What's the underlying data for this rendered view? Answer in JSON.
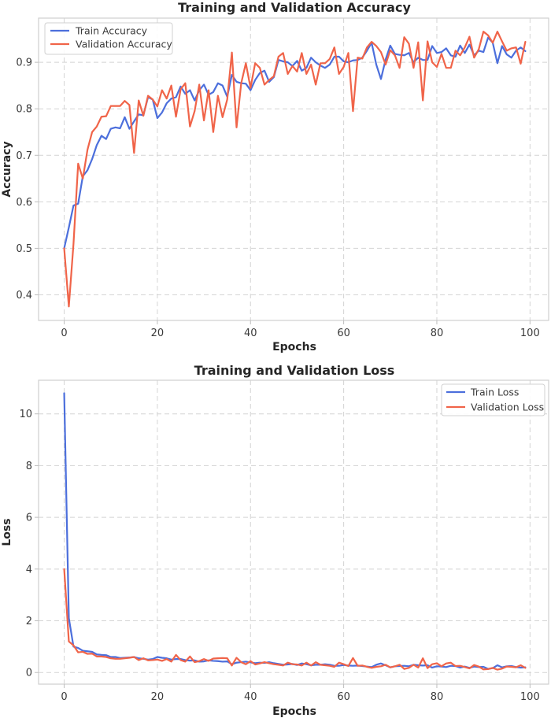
{
  "chart_data": [
    {
      "type": "line",
      "title": "Training and Validation Accuracy",
      "xlabel": "Epochs",
      "ylabel": "Accuracy",
      "xlim": [
        -5.5,
        104
      ],
      "ylim": [
        0.345,
        0.995
      ],
      "xticks": [
        0,
        20,
        40,
        60,
        80,
        100
      ],
      "yticks": [
        0.4,
        0.5,
        0.6,
        0.7,
        0.8,
        0.9
      ],
      "grid": true,
      "legend_position": "top-left",
      "series": [
        {
          "name": "Train Accuracy",
          "color": "#4c6fdc",
          "values": [
            0.5,
            0.545,
            0.592,
            0.596,
            0.655,
            0.668,
            0.692,
            0.722,
            0.742,
            0.735,
            0.757,
            0.76,
            0.758,
            0.782,
            0.757,
            0.773,
            0.788,
            0.786,
            0.825,
            0.82,
            0.78,
            0.792,
            0.812,
            0.822,
            0.825,
            0.848,
            0.832,
            0.84,
            0.818,
            0.84,
            0.852,
            0.83,
            0.836,
            0.855,
            0.85,
            0.826,
            0.873,
            0.858,
            0.855,
            0.854,
            0.84,
            0.862,
            0.877,
            0.882,
            0.858,
            0.868,
            0.905,
            0.902,
            0.9,
            0.892,
            0.903,
            0.882,
            0.888,
            0.91,
            0.9,
            0.893,
            0.888,
            0.895,
            0.912,
            0.912,
            0.902,
            0.9,
            0.904,
            0.905,
            0.91,
            0.925,
            0.942,
            0.895,
            0.864,
            0.906,
            0.936,
            0.918,
            0.916,
            0.915,
            0.92,
            0.9,
            0.91,
            0.905,
            0.905,
            0.935,
            0.92,
            0.922,
            0.93,
            0.915,
            0.912,
            0.936,
            0.92,
            0.938,
            0.915,
            0.925,
            0.922,
            0.953,
            0.942,
            0.898,
            0.935,
            0.917,
            0.91,
            0.925,
            0.932,
            0.924
          ]
        },
        {
          "name": "Validation Accuracy",
          "color": "#f06449",
          "values": [
            0.5,
            0.375,
            0.51,
            0.682,
            0.65,
            0.712,
            0.75,
            0.762,
            0.783,
            0.784,
            0.806,
            0.806,
            0.806,
            0.817,
            0.808,
            0.705,
            0.818,
            0.785,
            0.828,
            0.82,
            0.805,
            0.84,
            0.822,
            0.85,
            0.783,
            0.842,
            0.855,
            0.762,
            0.795,
            0.852,
            0.775,
            0.84,
            0.75,
            0.828,
            0.782,
            0.82,
            0.921,
            0.76,
            0.855,
            0.898,
            0.845,
            0.898,
            0.888,
            0.852,
            0.862,
            0.87,
            0.912,
            0.92,
            0.875,
            0.892,
            0.88,
            0.92,
            0.875,
            0.895,
            0.852,
            0.898,
            0.898,
            0.907,
            0.932,
            0.875,
            0.89,
            0.92,
            0.795,
            0.91,
            0.908,
            0.932,
            0.944,
            0.935,
            0.922,
            0.895,
            0.926,
            0.915,
            0.888,
            0.954,
            0.94,
            0.888,
            0.943,
            0.818,
            0.945,
            0.9,
            0.89,
            0.918,
            0.888,
            0.888,
            0.925,
            0.915,
            0.932,
            0.955,
            0.91,
            0.928,
            0.966,
            0.958,
            0.942,
            0.966,
            0.945,
            0.925,
            0.93,
            0.932,
            0.897,
            0.944
          ]
        }
      ]
    },
    {
      "type": "line",
      "title": "Training and Validation Loss",
      "xlabel": "Epochs",
      "ylabel": "Loss",
      "xlim": [
        -5.5,
        104
      ],
      "ylim": [
        -0.45,
        11.3
      ],
      "xticks": [
        0,
        20,
        40,
        60,
        80,
        100
      ],
      "yticks": [
        0,
        2,
        4,
        6,
        8,
        10
      ],
      "grid": true,
      "legend_position": "top-right",
      "series": [
        {
          "name": "Train Loss",
          "color": "#4c6fdc",
          "values": [
            10.8,
            2.1,
            1.0,
            0.95,
            0.84,
            0.82,
            0.8,
            0.7,
            0.68,
            0.67,
            0.6,
            0.6,
            0.56,
            0.57,
            0.58,
            0.6,
            0.55,
            0.53,
            0.5,
            0.52,
            0.6,
            0.57,
            0.55,
            0.5,
            0.52,
            0.52,
            0.48,
            0.46,
            0.47,
            0.42,
            0.43,
            0.47,
            0.45,
            0.44,
            0.42,
            0.43,
            0.32,
            0.38,
            0.4,
            0.42,
            0.39,
            0.36,
            0.38,
            0.37,
            0.4,
            0.36,
            0.33,
            0.3,
            0.31,
            0.33,
            0.29,
            0.35,
            0.32,
            0.28,
            0.3,
            0.3,
            0.32,
            0.3,
            0.26,
            0.26,
            0.29,
            0.27,
            0.26,
            0.27,
            0.25,
            0.23,
            0.21,
            0.3,
            0.35,
            0.28,
            0.2,
            0.24,
            0.25,
            0.26,
            0.24,
            0.3,
            0.28,
            0.27,
            0.28,
            0.19,
            0.24,
            0.23,
            0.21,
            0.26,
            0.25,
            0.19,
            0.23,
            0.18,
            0.23,
            0.21,
            0.22,
            0.14,
            0.17,
            0.28,
            0.2,
            0.24,
            0.25,
            0.21,
            0.19,
            0.2
          ]
        },
        {
          "name": "Validation Loss",
          "color": "#f06449",
          "values": [
            4.0,
            1.2,
            1.05,
            0.78,
            0.8,
            0.72,
            0.73,
            0.62,
            0.62,
            0.6,
            0.55,
            0.53,
            0.53,
            0.55,
            0.57,
            0.6,
            0.48,
            0.55,
            0.47,
            0.48,
            0.5,
            0.45,
            0.52,
            0.42,
            0.68,
            0.48,
            0.42,
            0.62,
            0.4,
            0.44,
            0.52,
            0.45,
            0.54,
            0.55,
            0.56,
            0.55,
            0.27,
            0.57,
            0.4,
            0.32,
            0.44,
            0.31,
            0.35,
            0.4,
            0.36,
            0.32,
            0.3,
            0.27,
            0.38,
            0.32,
            0.31,
            0.27,
            0.38,
            0.27,
            0.4,
            0.3,
            0.28,
            0.26,
            0.22,
            0.38,
            0.32,
            0.25,
            0.56,
            0.26,
            0.27,
            0.22,
            0.18,
            0.22,
            0.24,
            0.3,
            0.2,
            0.24,
            0.3,
            0.14,
            0.18,
            0.3,
            0.19,
            0.55,
            0.17,
            0.32,
            0.36,
            0.24,
            0.35,
            0.38,
            0.25,
            0.26,
            0.21,
            0.16,
            0.29,
            0.23,
            0.12,
            0.13,
            0.18,
            0.11,
            0.15,
            0.23,
            0.22,
            0.2,
            0.28,
            0.18
          ]
        }
      ]
    }
  ]
}
